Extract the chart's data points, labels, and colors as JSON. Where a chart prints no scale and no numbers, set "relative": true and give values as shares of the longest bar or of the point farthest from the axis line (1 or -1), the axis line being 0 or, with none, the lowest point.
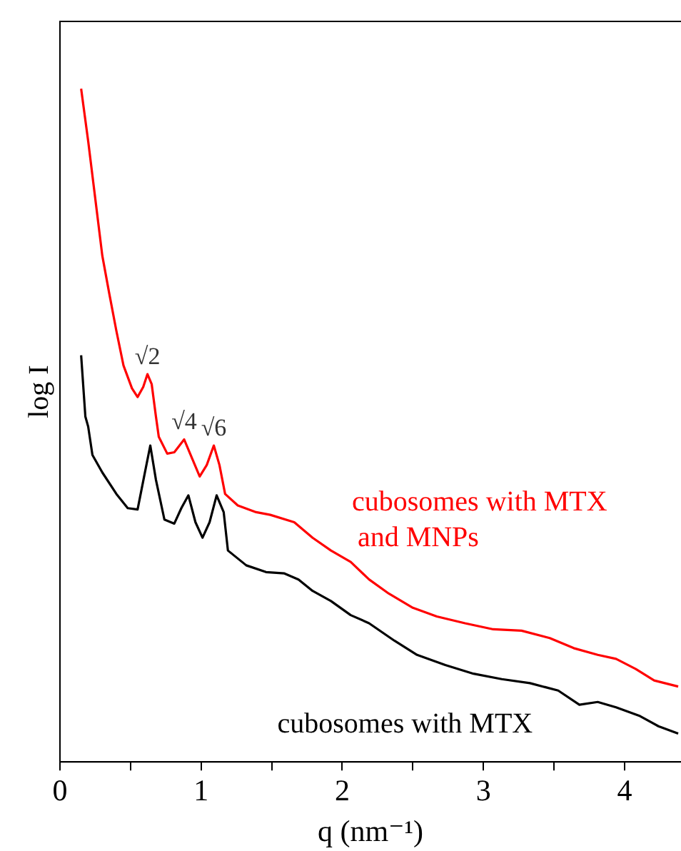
{
  "chart_data": {
    "type": "line",
    "xlabel": "q (nm⁻¹)",
    "ylabel": "log I",
    "relative": true,
    "xlim": [
      0,
      4.4
    ],
    "xticks": [
      0,
      {
        "value": 0.5,
        "label": null
      },
      1,
      {
        "value": 1.5,
        "label": null
      },
      2,
      {
        "value": 2.5,
        "label": null
      },
      3,
      {
        "value": 3.5,
        "label": null
      },
      4
    ],
    "tick_labels": "x",
    "marker": "none",
    "line_style": "solid",
    "series": [
      {
        "name": "cubosomes with MTX and MNPs",
        "color": "#ff0000",
        "x": [
          0.15,
          0.2,
          0.25,
          0.3,
          0.35,
          0.4,
          0.45,
          0.51,
          0.55,
          0.59,
          0.62,
          0.65,
          0.68,
          0.7,
          0.76,
          0.81,
          0.88,
          0.94,
          0.99,
          1.04,
          1.09,
          1.13,
          1.17,
          1.26,
          1.39,
          1.49,
          1.66,
          1.79,
          1.92,
          2.06,
          2.19,
          2.33,
          2.5,
          2.67,
          2.87,
          3.07,
          3.27,
          3.47,
          3.64,
          3.81,
          3.94,
          4.08,
          4.21,
          4.38
        ],
        "values": [
          1.0,
          0.922,
          0.837,
          0.752,
          0.695,
          0.64,
          0.589,
          0.555,
          0.542,
          0.557,
          0.576,
          0.561,
          0.513,
          0.483,
          0.458,
          0.46,
          0.479,
          0.449,
          0.424,
          0.441,
          0.47,
          0.441,
          0.398,
          0.381,
          0.371,
          0.367,
          0.356,
          0.333,
          0.314,
          0.297,
          0.271,
          0.25,
          0.229,
          0.216,
          0.206,
          0.197,
          0.195,
          0.184,
          0.169,
          0.159,
          0.153,
          0.138,
          0.121,
          0.112
        ]
      },
      {
        "name": "cubosomes with MTX",
        "color": "#000000",
        "x": [
          0.15,
          0.18,
          0.2,
          0.23,
          0.3,
          0.4,
          0.48,
          0.55,
          0.6,
          0.64,
          0.68,
          0.74,
          0.81,
          0.86,
          0.91,
          0.96,
          1.01,
          1.06,
          1.11,
          1.16,
          1.19,
          1.32,
          1.46,
          1.59,
          1.69,
          1.79,
          1.92,
          2.06,
          2.19,
          2.37,
          2.53,
          2.73,
          2.93,
          3.13,
          3.33,
          3.53,
          3.68,
          3.81,
          3.94,
          4.11,
          4.24,
          4.38
        ],
        "values": [
          0.604,
          0.513,
          0.498,
          0.456,
          0.43,
          0.398,
          0.377,
          0.375,
          0.428,
          0.47,
          0.419,
          0.36,
          0.354,
          0.377,
          0.396,
          0.356,
          0.333,
          0.356,
          0.396,
          0.371,
          0.314,
          0.292,
          0.282,
          0.28,
          0.271,
          0.254,
          0.239,
          0.218,
          0.206,
          0.18,
          0.159,
          0.144,
          0.131,
          0.123,
          0.117,
          0.106,
          0.085,
          0.089,
          0.081,
          0.068,
          0.053,
          0.042
        ]
      }
    ],
    "annotations": [
      {
        "text": "√2",
        "x": 0.62,
        "y": 0.576
      },
      {
        "text": "√4",
        "x": 0.88,
        "y": 0.479
      },
      {
        "text": "√6",
        "x": 1.09,
        "y": 0.47
      }
    ]
  }
}
